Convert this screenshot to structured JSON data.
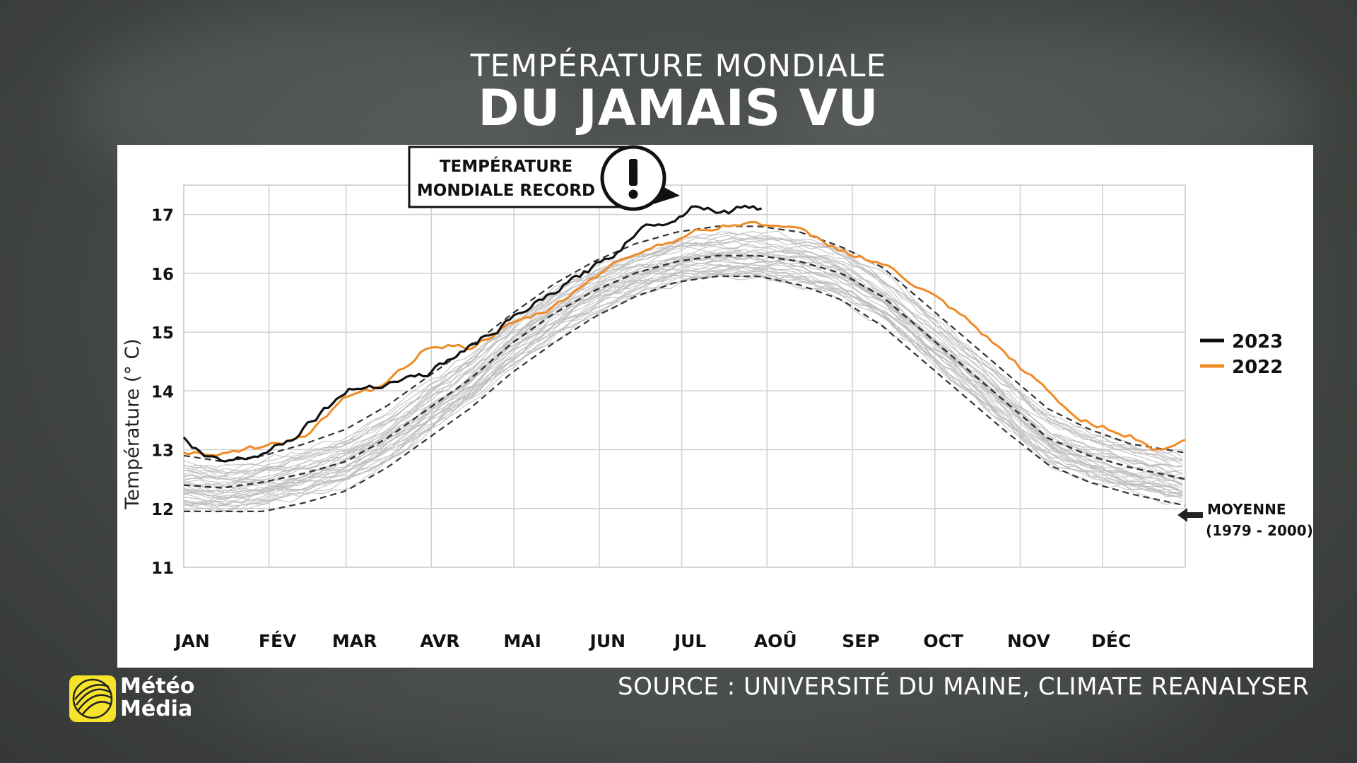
{
  "header": {
    "subtitle": "TEMPÉRATURE MONDIALE",
    "title": "DU JAMAIS VU"
  },
  "callout": {
    "line1": "TEMPÉRATURE",
    "line2": "MONDIALE RECORD",
    "icon": "exclamation-icon"
  },
  "source": "SOURCE : UNIVERSITÉ DU MAINE, CLIMATE REANALYSER",
  "logo": {
    "line1": "Météo",
    "line2": "Média",
    "color": "#f6e32b"
  },
  "chart_data": {
    "type": "line",
    "ylabel": "Température (° C)",
    "ylim": [
      11,
      17.5
    ],
    "yticks": [
      11,
      12,
      13,
      14,
      15,
      16,
      17
    ],
    "grid": true,
    "months": [
      "JAN",
      "FÉV",
      "MAR",
      "AVR",
      "MAI",
      "JUN",
      "JUL",
      "AOÛ",
      "SEP",
      "OCT",
      "NOV",
      "DÉC"
    ],
    "legend": {
      "placement": "right",
      "entries": [
        {
          "label": "2023",
          "color": "#111111"
        },
        {
          "label": "2022",
          "color": "#f08a24"
        }
      ]
    },
    "mean_label": {
      "line1": "MOYENNE",
      "line2": "(1979 - 2000)"
    },
    "series": [
      {
        "name": "2023",
        "color": "#111111",
        "x": [
          1,
          8,
          15,
          25,
          32,
          40,
          50,
          60,
          70,
          80,
          90,
          100,
          110,
          120,
          130,
          140,
          150,
          158,
          165,
          172,
          180,
          188,
          193,
          198,
          203,
          208,
          212
        ],
        "y": [
          13.2,
          12.9,
          12.8,
          12.9,
          13.0,
          13.2,
          13.6,
          14.0,
          14.1,
          14.2,
          14.3,
          14.6,
          14.9,
          15.2,
          15.5,
          15.8,
          16.1,
          16.35,
          16.7,
          16.85,
          16.95,
          17.2,
          17.1,
          17.05,
          17.1,
          17.15,
          17.1
        ]
      },
      {
        "name": "2022",
        "color": "#f08a24",
        "x": [
          1,
          15,
          30,
          45,
          60,
          75,
          90,
          105,
          120,
          135,
          150,
          165,
          180,
          195,
          205,
          215,
          225,
          240,
          255,
          270,
          285,
          300,
          315,
          325,
          335,
          345,
          355,
          365
        ],
        "y": [
          12.95,
          12.95,
          13.05,
          13.25,
          13.85,
          14.1,
          14.8,
          14.75,
          15.1,
          15.4,
          15.95,
          16.35,
          16.6,
          16.8,
          16.85,
          16.85,
          16.7,
          16.4,
          16.15,
          15.7,
          15.2,
          14.6,
          14.0,
          13.55,
          13.4,
          13.25,
          13.0,
          13.15
        ]
      },
      {
        "name": "MOYENNE (1979 - 2000)",
        "color": "#333333",
        "x": [
          1,
          15,
          30,
          45,
          60,
          75,
          90,
          105,
          120,
          135,
          150,
          165,
          180,
          195,
          210,
          225,
          240,
          255,
          270,
          285,
          300,
          315,
          330,
          345,
          365
        ],
        "y": [
          12.4,
          12.35,
          12.45,
          12.6,
          12.8,
          13.2,
          13.7,
          14.2,
          14.8,
          15.3,
          15.7,
          16.0,
          16.2,
          16.3,
          16.3,
          16.2,
          16.0,
          15.6,
          15.0,
          14.4,
          13.8,
          13.2,
          12.9,
          12.7,
          12.5
        ]
      },
      {
        "name": "upper",
        "color": "#333333",
        "x": [
          1,
          15,
          30,
          45,
          60,
          75,
          90,
          105,
          120,
          135,
          150,
          165,
          180,
          195,
          210,
          225,
          240,
          255,
          270,
          285,
          300,
          315,
          330,
          345,
          365
        ],
        "y": [
          12.9,
          12.8,
          12.9,
          13.1,
          13.35,
          13.75,
          14.25,
          14.75,
          15.3,
          15.8,
          16.2,
          16.5,
          16.7,
          16.8,
          16.8,
          16.7,
          16.45,
          16.1,
          15.5,
          14.9,
          14.3,
          13.7,
          13.35,
          13.1,
          12.95
        ]
      },
      {
        "name": "lower",
        "color": "#333333",
        "x": [
          1,
          15,
          30,
          45,
          60,
          75,
          90,
          105,
          120,
          135,
          150,
          165,
          180,
          195,
          210,
          225,
          240,
          255,
          270,
          285,
          300,
          315,
          330,
          345,
          365
        ],
        "y": [
          11.95,
          11.95,
          11.95,
          12.1,
          12.3,
          12.7,
          13.2,
          13.7,
          14.3,
          14.8,
          15.25,
          15.6,
          15.85,
          15.95,
          15.95,
          15.8,
          15.55,
          15.1,
          14.5,
          13.9,
          13.3,
          12.75,
          12.45,
          12.25,
          12.05
        ]
      }
    ]
  }
}
